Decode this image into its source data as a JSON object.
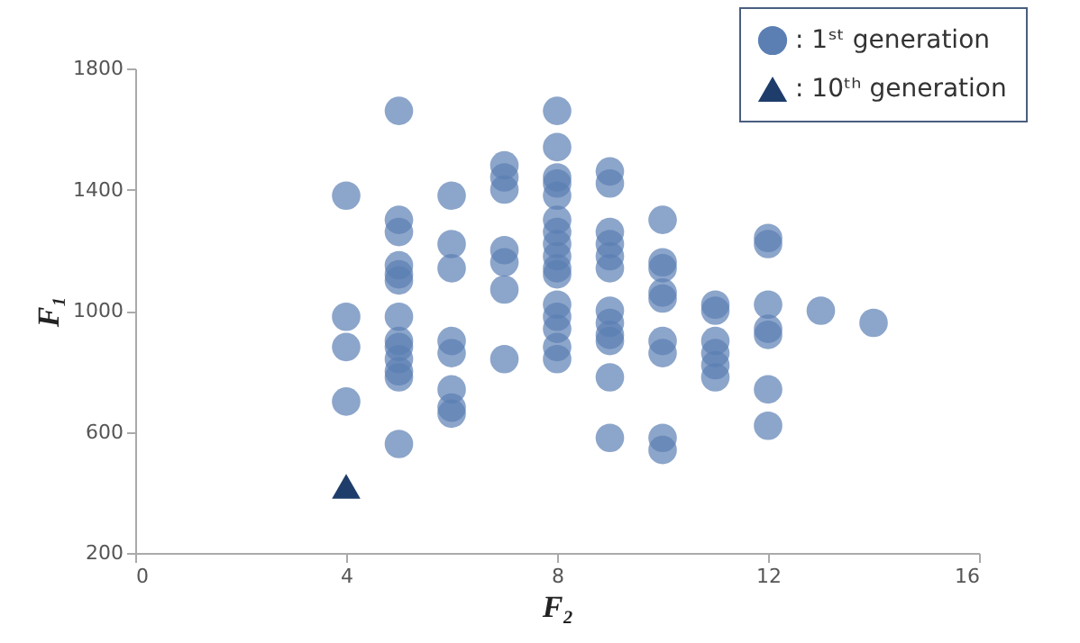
{
  "chart_data": {
    "type": "scatter",
    "xlabel": "F₂",
    "ylabel": "F₁",
    "xlim": [
      0,
      16
    ],
    "xticks": [
      0,
      4,
      8,
      12,
      16
    ],
    "ylim": [
      200,
      1800
    ],
    "yticks": [
      200,
      600,
      {
        "value": 1000,
        "label": "1000"
      },
      {
        "value": 1400,
        "label": "1400"
      },
      {
        "value": 1800,
        "label": "1800"
      }
    ],
    "grid": false,
    "legend": "top right",
    "series": [
      {
        "name": ": 1ˢᵗ generation",
        "color": "#5b7fb3",
        "marker": "circle",
        "x": [
          4,
          4,
          4,
          4,
          5,
          5,
          5,
          5,
          5,
          5,
          5,
          5,
          5,
          5,
          5,
          5,
          5,
          6,
          6,
          6,
          6,
          6,
          6,
          6,
          6,
          7,
          7,
          7,
          7,
          7,
          7,
          7,
          8,
          8,
          8,
          8,
          8,
          8,
          8,
          8,
          8,
          8,
          8,
          8,
          8,
          8,
          8,
          8,
          9,
          9,
          9,
          9,
          9,
          9,
          9,
          9,
          9,
          9,
          9,
          9,
          10,
          10,
          10,
          10,
          10,
          10,
          10,
          10,
          10,
          11,
          11,
          11,
          11,
          11,
          11,
          12,
          12,
          12,
          12,
          12,
          12,
          12,
          13,
          14
        ],
        "values": [
          1380,
          980,
          880,
          700,
          1660,
          1300,
          1260,
          1150,
          1120,
          1100,
          980,
          900,
          880,
          840,
          800,
          780,
          560,
          1380,
          1220,
          1140,
          900,
          860,
          740,
          680,
          660,
          1480,
          1440,
          1400,
          1200,
          1160,
          1070,
          840,
          1660,
          1540,
          1440,
          1420,
          1380,
          1300,
          1260,
          1220,
          1180,
          1140,
          1120,
          1020,
          980,
          940,
          880,
          840,
          1460,
          1420,
          1260,
          1220,
          1180,
          1140,
          1000,
          960,
          920,
          900,
          780,
          580,
          1300,
          1160,
          1140,
          1060,
          1040,
          900,
          860,
          580,
          540,
          1020,
          1000,
          900,
          860,
          820,
          780,
          1240,
          1220,
          1020,
          940,
          920,
          740,
          620,
          1000,
          960
        ]
      },
      {
        "name": ": 10ᵗʰ generation",
        "color": "#1f3d6b",
        "marker": "triangle",
        "x": [
          4
        ],
        "values": [
          420
        ]
      }
    ]
  }
}
